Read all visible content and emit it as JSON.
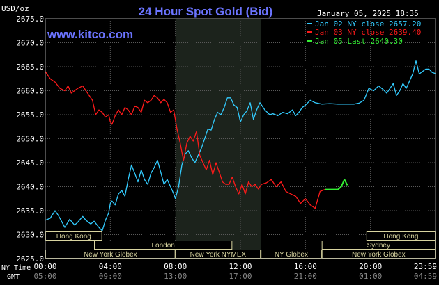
{
  "header": {
    "title": "24 Hour Spot Gold (Bid)",
    "ylabel": "USD/oz",
    "timestamp": "January 05, 2025 18:35",
    "website": "www.kitco.com"
  },
  "legend": [
    {
      "label": "Jan 02 NY close 2657.20",
      "color": "#33ccff"
    },
    {
      "label": "Jan 03 NY close 2639.40",
      "color": "#ff1a1a"
    },
    {
      "label": "Jan 05 Last 2640.30",
      "color": "#33ee33"
    }
  ],
  "axis": {
    "y_ticks": [
      "2675.0",
      "2670.0",
      "2665.0",
      "2660.0",
      "2655.0",
      "2650.0",
      "2645.0",
      "2640.0",
      "2635.0",
      "2630.0",
      "2625.0"
    ],
    "x_ticks_ny": [
      "00:00",
      "04:00",
      "08:00",
      "12:00",
      "16:00",
      "20:00",
      "23:59"
    ],
    "x_ticks_gmt": [
      "05:00",
      "09:00",
      "13:00",
      "17:00",
      "21:00",
      "01:00",
      "04:59"
    ],
    "ny_time_label": "NY Time",
    "gmt_label": "GMT"
  },
  "sessions": [
    {
      "label": "Hong Kong",
      "row": 0,
      "start": 0.0,
      "end": 3.5
    },
    {
      "label": "Hong Kong",
      "row": 0,
      "start": 19.75,
      "end": 24.0
    },
    {
      "label": "London",
      "row": 1,
      "start": 3.0,
      "end": 11.5
    },
    {
      "label": "Sydney",
      "row": 1,
      "start": 17.0,
      "end": 24.0
    },
    {
      "label": "New York Globex",
      "row": 2,
      "start": 0.0,
      "end": 8.0
    },
    {
      "label": "New York NYMEX",
      "row": 2,
      "start": 8.0,
      "end": 13.25
    },
    {
      "label": "NY Globex",
      "row": 2,
      "start": 13.25,
      "end": 17.0
    },
    {
      "label": "New York Globex",
      "row": 2,
      "start": 17.0,
      "end": 24.0
    }
  ],
  "colors": {
    "background": "#000000",
    "plot_bg": "#000000",
    "nymex_shade": "#1c231c",
    "grid": "#5a5a5a",
    "title": "#6b74ff",
    "website": "#6b74ff",
    "text": "#ffffff",
    "session_box": "#d8d4a0",
    "session_text": "#d8d4a0",
    "blue": "#33ccff",
    "red": "#ff1a1a",
    "green": "#33ee33"
  },
  "chart_data": {
    "type": "line",
    "title": "24 Hour Spot Gold (Bid)",
    "ylabel": "USD/oz",
    "ylim": [
      2625.0,
      2675.0
    ],
    "xlim": [
      0,
      24
    ],
    "grid": true,
    "legend_position": "top-right",
    "shaded_region": [
      8.0,
      13.25
    ],
    "series": [
      {
        "name": "Jan 02 NY close 2657.20",
        "color": "#33ccff",
        "x": [
          0.0,
          0.3,
          0.6,
          0.8,
          1.0,
          1.2,
          1.5,
          1.8,
          2.0,
          2.3,
          2.5,
          2.8,
          3.0,
          3.3,
          3.5,
          3.7,
          3.9,
          4.0,
          4.1,
          4.3,
          4.5,
          4.7,
          4.9,
          5.1,
          5.3,
          5.5,
          5.7,
          5.9,
          6.1,
          6.3,
          6.5,
          6.7,
          6.9,
          7.1,
          7.3,
          7.5,
          7.7,
          7.9,
          8.0,
          8.2,
          8.4,
          8.6,
          8.8,
          9.0,
          9.2,
          9.4,
          9.6,
          9.8,
          10.0,
          10.2,
          10.4,
          10.6,
          10.8,
          11.0,
          11.2,
          11.4,
          11.6,
          11.8,
          12.0,
          12.2,
          12.4,
          12.6,
          12.8,
          13.0,
          13.2,
          13.5,
          13.8,
          14.0,
          14.3,
          14.6,
          14.9,
          15.2,
          15.4,
          15.6,
          15.8,
          16.0,
          16.3,
          16.6,
          17.0,
          17.5,
          18.0,
          18.4,
          18.8,
          19.0,
          19.3,
          19.6,
          19.9,
          20.2,
          20.5,
          20.8,
          21.0,
          21.2,
          21.4,
          21.6,
          21.8,
          22.0,
          22.2,
          22.4,
          22.6,
          22.8,
          23.0,
          23.2,
          23.4,
          23.6,
          23.8,
          23.99
        ],
        "values": [
          2633.0,
          2633.4,
          2635.0,
          2634.0,
          2632.8,
          2631.5,
          2633.2,
          2632.0,
          2632.6,
          2633.8,
          2633.0,
          2632.2,
          2632.8,
          2631.5,
          2630.8,
          2633.0,
          2634.5,
          2636.5,
          2637.0,
          2636.2,
          2638.5,
          2639.2,
          2638.0,
          2641.5,
          2644.5,
          2642.8,
          2641.0,
          2643.5,
          2641.5,
          2640.5,
          2642.8,
          2644.0,
          2645.5,
          2643.0,
          2640.5,
          2641.5,
          2640.0,
          2638.5,
          2637.5,
          2640.0,
          2644.5,
          2646.8,
          2647.5,
          2646.0,
          2645.0,
          2646.5,
          2648.0,
          2650.0,
          2652.0,
          2651.8,
          2654.0,
          2655.5,
          2655.0,
          2656.5,
          2658.5,
          2658.5,
          2657.0,
          2656.5,
          2653.5,
          2655.0,
          2655.8,
          2657.5,
          2654.0,
          2656.0,
          2657.5,
          2656.0,
          2655.0,
          2655.2,
          2654.8,
          2655.5,
          2655.2,
          2656.0,
          2654.8,
          2655.5,
          2656.5,
          2657.0,
          2658.0,
          2657.5,
          2657.2,
          2657.3,
          2657.2,
          2657.2,
          2657.2,
          2657.2,
          2657.4,
          2658.0,
          2660.5,
          2660.0,
          2661.0,
          2660.2,
          2659.5,
          2660.5,
          2661.5,
          2659.0,
          2660.0,
          2661.5,
          2660.5,
          2662.0,
          2663.5,
          2666.2,
          2663.5,
          2664.0,
          2664.5,
          2664.5,
          2663.8,
          2663.6
        ]
      },
      {
        "name": "Jan 03 NY close 2639.40",
        "color": "#ff1a1a",
        "x": [
          0.0,
          0.3,
          0.6,
          0.9,
          1.2,
          1.4,
          1.6,
          1.8,
          2.0,
          2.3,
          2.6,
          2.9,
          3.1,
          3.3,
          3.5,
          3.7,
          3.9,
          4.0,
          4.1,
          4.3,
          4.5,
          4.7,
          4.9,
          5.1,
          5.3,
          5.5,
          5.7,
          5.9,
          6.1,
          6.3,
          6.5,
          6.7,
          6.9,
          7.1,
          7.3,
          7.5,
          7.7,
          7.9,
          8.1,
          8.3,
          8.5,
          8.7,
          8.9,
          9.1,
          9.3,
          9.5,
          9.7,
          9.9,
          10.1,
          10.3,
          10.5,
          10.7,
          10.9,
          11.1,
          11.3,
          11.5,
          11.7,
          11.9,
          12.1,
          12.3,
          12.5,
          12.7,
          12.9,
          13.1,
          13.3,
          13.6,
          13.9,
          14.2,
          14.5,
          14.8,
          15.1,
          15.4,
          15.7,
          16.0,
          16.3,
          16.6,
          16.9,
          17.2
        ],
        "values": [
          2664.0,
          2662.5,
          2661.8,
          2660.5,
          2660.0,
          2661.0,
          2659.5,
          2660.0,
          2660.5,
          2661.0,
          2659.5,
          2658.0,
          2655.0,
          2656.0,
          2655.5,
          2654.5,
          2655.0,
          2653.5,
          2653.0,
          2654.8,
          2656.0,
          2655.0,
          2656.5,
          2656.0,
          2655.0,
          2656.8,
          2656.5,
          2655.5,
          2658.0,
          2657.5,
          2658.0,
          2659.0,
          2658.5,
          2657.5,
          2658.2,
          2657.5,
          2655.5,
          2656.0,
          2652.0,
          2649.0,
          2645.5,
          2649.0,
          2650.5,
          2649.5,
          2651.5,
          2646.5,
          2645.0,
          2643.5,
          2645.5,
          2642.5,
          2645.0,
          2643.0,
          2641.0,
          2640.5,
          2640.5,
          2642.0,
          2640.0,
          2638.5,
          2640.5,
          2638.5,
          2641.0,
          2640.0,
          2640.5,
          2639.5,
          2640.5,
          2640.8,
          2641.5,
          2640.0,
          2641.0,
          2639.0,
          2638.5,
          2638.0,
          2636.5,
          2637.5,
          2636.2,
          2635.5,
          2639.0,
          2639.4
        ]
      },
      {
        "name": "Jan 05 Last 2640.30",
        "color": "#33ee33",
        "x": [
          17.2,
          17.6,
          18.0,
          18.2,
          18.4,
          18.58
        ],
        "values": [
          2639.4,
          2639.4,
          2639.4,
          2640.0,
          2641.5,
          2640.3
        ]
      }
    ]
  }
}
